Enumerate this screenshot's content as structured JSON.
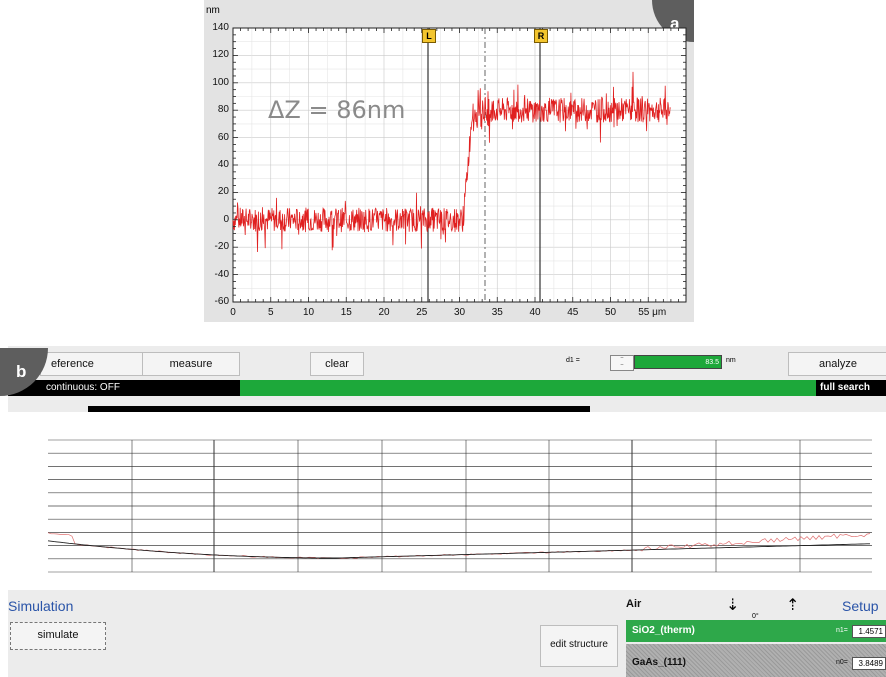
{
  "panel_a": {
    "badge": "a",
    "unit_y": "nm",
    "unit_x": "μm",
    "delta_label": "ΔZ = 86nm",
    "y_ticks": [
      "140",
      "120",
      "100",
      "80",
      "60",
      "40",
      "20",
      "0",
      "-20",
      "-40",
      "-60"
    ],
    "x_ticks": [
      "0",
      "5",
      "10",
      "15",
      "20",
      "25",
      "30",
      "35",
      "40",
      "45",
      "50",
      "55 μm"
    ],
    "cursor_left": "L",
    "cursor_right": "R",
    "line_color": "#e02020"
  },
  "panel_b": {
    "badge": "b",
    "toolbar": {
      "reference": "eference",
      "measure": "measure",
      "clear": "clear",
      "d1_label": "d1 =",
      "d1_value": "83.5",
      "d1_unit": "nm",
      "analyze": "analyze"
    },
    "status": {
      "continuous": "continuous:  OFF",
      "full_search": "full search"
    },
    "simulation_title": "Simulation",
    "simulate": "simulate",
    "edit_structure": "edit structure",
    "setup_title": "Setup",
    "air": "Air",
    "angle": "0°",
    "layers": [
      {
        "name": "SiO2_(therm)",
        "n_label": "n1=",
        "n_value": "1.4571"
      },
      {
        "name": "GaAs_(111)",
        "n_label": "n0=",
        "n_value": "3.8489"
      }
    ],
    "green": "#1da83a"
  }
}
